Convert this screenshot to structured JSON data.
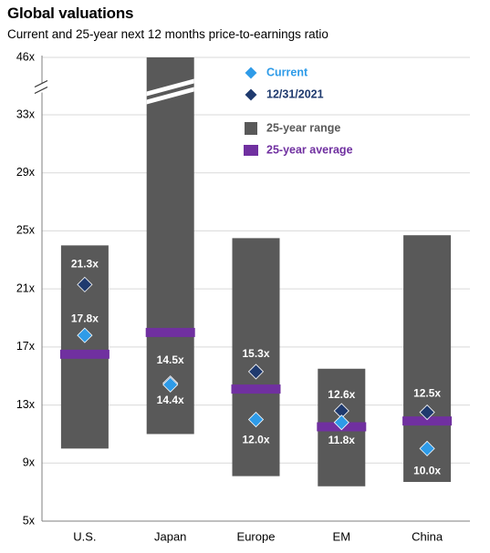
{
  "title": "Global valuations",
  "subtitle": "Current and 25-year next 12 months price-to-earnings ratio",
  "colors": {
    "range": "#595959",
    "average": "#7030a0",
    "current": "#2e9be8",
    "prior": "#1f3a6e",
    "grid": "#d9d9d9",
    "axis": "#7f7f7f"
  },
  "chart_data": {
    "type": "bar",
    "axis_break": {
      "from": 33,
      "to": 46
    },
    "y_ticks": [
      {
        "value": 5,
        "label": "5x"
      },
      {
        "value": 9,
        "label": "9x"
      },
      {
        "value": 13,
        "label": "13x"
      },
      {
        "value": 17,
        "label": "17x"
      },
      {
        "value": 21,
        "label": "21x"
      },
      {
        "value": 25,
        "label": "25x"
      },
      {
        "value": 29,
        "label": "29x"
      },
      {
        "value": 33,
        "label": "33x"
      },
      {
        "value": 46,
        "label": "46x"
      }
    ],
    "ylim": [
      5,
      46
    ],
    "grid": true,
    "legend_position": "top-right",
    "legend": [
      {
        "key": "current",
        "label": "Current",
        "shape": "diamond",
        "color": "#2e9be8"
      },
      {
        "key": "prior",
        "label": "12/31/2021",
        "shape": "diamond",
        "color": "#1f3a6e"
      },
      {
        "key": "range",
        "label": "25-year range",
        "shape": "square",
        "color": "#595959"
      },
      {
        "key": "average",
        "label": "25-year average",
        "shape": "bar",
        "color": "#7030a0"
      }
    ],
    "categories": [
      "U.S.",
      "Japan",
      "Europe",
      "EM",
      "China"
    ],
    "range_low": [
      10.0,
      11.0,
      8.1,
      7.4,
      7.7
    ],
    "range_high": [
      24.0,
      46,
      24.5,
      15.5,
      24.7
    ],
    "average": [
      16.5,
      18.0,
      14.1,
      11.5,
      11.9
    ],
    "current": [
      17.8,
      14.4,
      12.0,
      11.8,
      10.0
    ],
    "prior": [
      21.3,
      14.5,
      15.3,
      12.6,
      12.5
    ],
    "current_labels": [
      "17.8x",
      "14.4x",
      "12.0x",
      "11.8x",
      "10.0x"
    ],
    "prior_labels": [
      "21.3x",
      "14.5x",
      "15.3x",
      "12.6x",
      "12.5x"
    ]
  }
}
